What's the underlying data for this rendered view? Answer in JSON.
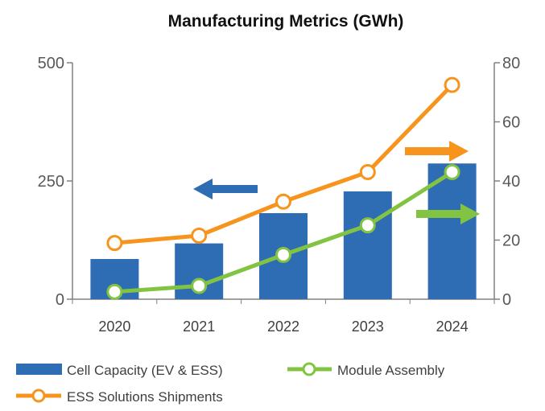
{
  "chart_data": {
    "type": "bar",
    "title": "Manufacturing Metrics (GWh)",
    "categories": [
      "2020",
      "2021",
      "2022",
      "2023",
      "2024"
    ],
    "series": [
      {
        "name": "Cell Capacity (EV & ESS)",
        "type": "bar",
        "axis": "left",
        "color": "#2E6DB4",
        "values": [
          85,
          118,
          182,
          228,
          287
        ]
      },
      {
        "name": "Module Assembly",
        "type": "line",
        "axis": "right",
        "color": "#82C441",
        "marker_fill": "#ffffff",
        "values": [
          2.5,
          4.5,
          15,
          25,
          43
        ]
      },
      {
        "name": "ESS Solutions Shipments",
        "type": "line",
        "axis": "right",
        "color": "#F7941D",
        "marker_fill": "#ffffff",
        "values": [
          19,
          21.5,
          33,
          43,
          72.5
        ]
      }
    ],
    "left_axis": {
      "ylim": [
        0,
        500
      ],
      "ticks": [
        "0",
        "250",
        "500"
      ]
    },
    "right_axis": {
      "ylim": [
        0,
        80
      ],
      "ticks": [
        "0",
        "20",
        "40",
        "60",
        "80"
      ]
    },
    "grid": false,
    "legend_position": "bottom",
    "annotations": [
      {
        "kind": "arrow",
        "direction": "left",
        "color": "#2E6DB4",
        "meaning": "left-axis"
      },
      {
        "kind": "arrow",
        "direction": "right",
        "color": "#F7941D",
        "meaning": "right-axis"
      },
      {
        "kind": "arrow",
        "direction": "right",
        "color": "#82C441",
        "meaning": "right-axis"
      }
    ]
  }
}
